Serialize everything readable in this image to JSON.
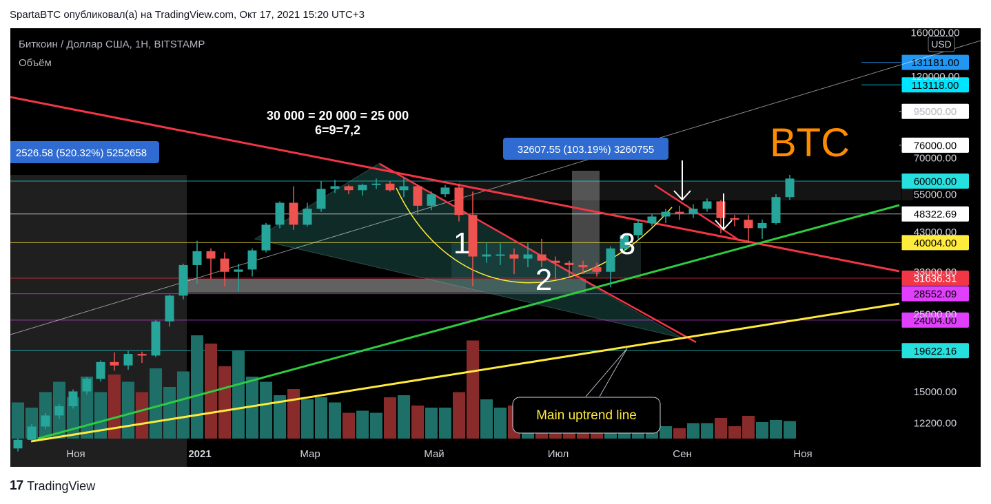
{
  "header": {
    "publisher_line": "SpartaBTC опубликовал(а) на TradingView.com, Окт 17, 2021 15:20 UTC+3"
  },
  "legend": {
    "symbol_line": "Биткоин / Доллар США, 1H, BITSTAMP",
    "volume_label": "Объём"
  },
  "currency_badge": "USD",
  "footer": {
    "logo_glyph": "17",
    "brand": "TradingView"
  },
  "chart_data": {
    "type": "candlestick",
    "title": "Биткоин / Доллар США, 1H, BITSTAMP",
    "y_scale": "log",
    "y_axis_ticks": [
      {
        "value": 160000,
        "label": "160000.00"
      },
      {
        "value": 120000,
        "label": "120000.00"
      },
      {
        "value": 95000,
        "label": "95000.00"
      },
      {
        "value": 70000,
        "label": "70000.00"
      },
      {
        "value": 55000,
        "label": "55000.00"
      },
      {
        "value": 43000,
        "label": "43000.00"
      },
      {
        "value": 33000,
        "label": "33000.00"
      },
      {
        "value": 25000,
        "label": "25000.00"
      },
      {
        "value": 15000,
        "label": "15000.00"
      },
      {
        "value": 12200,
        "label": "12200.00"
      }
    ],
    "x_axis_labels": [
      {
        "label": "Ноя",
        "bold": false
      },
      {
        "label": "2021",
        "bold": true
      },
      {
        "label": "Мар",
        "bold": false
      },
      {
        "label": "Май",
        "bold": false
      },
      {
        "label": "Июл",
        "bold": false
      },
      {
        "label": "Сен",
        "bold": false
      },
      {
        "label": "Ноя",
        "bold": false
      }
    ],
    "price_levels": [
      {
        "value": 131181.0,
        "label": "131181.00",
        "color": "#2196f3",
        "text_color": "#000000"
      },
      {
        "value": 113118.0,
        "label": "113118.00",
        "color": "#00e5ff",
        "text_color": "#000000"
      },
      {
        "value": 95000.0,
        "label": "95000.00",
        "color": "#ffffff",
        "text_color": "#000000"
      },
      {
        "value": 76000.0,
        "label": "76000.00",
        "color": "#ffffff",
        "text_color": "#000000"
      },
      {
        "value": 60000.0,
        "label": "60000.00",
        "color": "#26e0e0",
        "text_color": "#000000"
      },
      {
        "value": 48322.69,
        "label": "48322.69",
        "color": "#ffffff",
        "text_color": "#000000"
      },
      {
        "value": 40004.0,
        "label": "40004.00",
        "color": "#ffeb3b",
        "text_color": "#000000"
      },
      {
        "value": 31636.31,
        "label": "31636.31",
        "color": "#f23645",
        "text_color": "#ffffff"
      },
      {
        "value": 28552.09,
        "label": "28552.09",
        "color": "#e040fb",
        "text_color": "#000000"
      },
      {
        "value": 24004.0,
        "label": "24004.00",
        "color": "#e040fb",
        "text_color": "#000000"
      },
      {
        "value": 19622.16,
        "label": "19622.16",
        "color": "#26e0e0",
        "text_color": "#000000"
      }
    ],
    "candles": [
      [
        10300,
        11000,
        10100,
        10900
      ],
      [
        10900,
        12100,
        10800,
        11900
      ],
      [
        11900,
        13000,
        11700,
        12800
      ],
      [
        12800,
        13800,
        12500,
        13600
      ],
      [
        13600,
        15200,
        13400,
        15000
      ],
      [
        15000,
        16500,
        14700,
        16300
      ],
      [
        16300,
        18400,
        16000,
        18200
      ],
      [
        18200,
        19400,
        17200,
        17800
      ],
      [
        17800,
        19600,
        17300,
        19200
      ],
      [
        19200,
        19500,
        18100,
        19000
      ],
      [
        19000,
        24000,
        18800,
        23800
      ],
      [
        23800,
        28400,
        23000,
        28200
      ],
      [
        28200,
        34800,
        27500,
        34500
      ],
      [
        34500,
        40500,
        30500,
        37800
      ],
      [
        37800,
        38500,
        31500,
        36000
      ],
      [
        36000,
        37500,
        30000,
        33000
      ],
      [
        33000,
        34800,
        29000,
        33500
      ],
      [
        33500,
        38500,
        32000,
        38000
      ],
      [
        38000,
        45500,
        37500,
        45000
      ],
      [
        45000,
        52500,
        44000,
        52000
      ],
      [
        52000,
        58000,
        43500,
        45000
      ],
      [
        45000,
        52000,
        44500,
        50000
      ],
      [
        50000,
        60000,
        49000,
        57000
      ],
      [
        57000,
        60500,
        55500,
        58000
      ],
      [
        58000,
        58500,
        55000,
        56500
      ],
      [
        56500,
        59000,
        54500,
        58500
      ],
      [
        58500,
        61000,
        57000,
        59000
      ],
      [
        59000,
        60000,
        56000,
        56500
      ],
      [
        56500,
        61500,
        54000,
        58000
      ],
      [
        58000,
        58500,
        48000,
        51000
      ],
      [
        51000,
        56000,
        49500,
        55000
      ],
      [
        55000,
        58500,
        54000,
        57500
      ],
      [
        57500,
        59000,
        46000,
        48000
      ],
      [
        48000,
        56000,
        30000,
        36500
      ],
      [
        36500,
        40000,
        35000,
        37000
      ],
      [
        37000,
        39800,
        34500,
        37000
      ],
      [
        37000,
        38500,
        32500,
        36000
      ],
      [
        36000,
        40000,
        34000,
        37000
      ],
      [
        37000,
        41000,
        34000,
        35500
      ],
      [
        35500,
        36500,
        31500,
        35000
      ],
      [
        35000,
        35500,
        32000,
        34500
      ],
      [
        34500,
        35500,
        32500,
        34000
      ],
      [
        34000,
        35000,
        32000,
        33000
      ],
      [
        33000,
        39000,
        29800,
        38500
      ],
      [
        38500,
        42500,
        37500,
        42000
      ],
      [
        42000,
        46500,
        41000,
        45500
      ],
      [
        45500,
        48500,
        44500,
        47500
      ],
      [
        47500,
        50000,
        45500,
        49000
      ],
      [
        49000,
        51000,
        46500,
        48500
      ],
      [
        48500,
        51500,
        47000,
        50000
      ],
      [
        50000,
        53500,
        49000,
        52500
      ],
      [
        52500,
        53000,
        42500,
        47000
      ],
      [
        47000,
        48000,
        44500,
        46500
      ],
      [
        46500,
        48000,
        40000,
        44000
      ],
      [
        44000,
        46500,
        41000,
        45500
      ],
      [
        45500,
        55000,
        45000,
        54000
      ],
      [
        54000,
        62500,
        53000,
        61000
      ]
    ],
    "volumes": [
      0.35,
      0.3,
      0.45,
      0.55,
      0.4,
      0.6,
      0.45,
      0.62,
      0.55,
      0.45,
      0.68,
      0.5,
      0.65,
      1.0,
      0.92,
      0.7,
      0.85,
      0.6,
      0.55,
      0.42,
      0.48,
      0.38,
      0.4,
      0.35,
      0.25,
      0.27,
      0.25,
      0.4,
      0.42,
      0.32,
      0.3,
      0.3,
      0.45,
      0.95,
      0.38,
      0.3,
      0.32,
      0.4,
      0.35,
      0.28,
      0.22,
      0.18,
      0.16,
      0.22,
      0.15,
      0.12,
      0.1,
      0.12,
      0.1,
      0.15,
      0.15,
      0.2,
      0.12,
      0.22,
      0.16,
      0.18,
      0.17
    ],
    "annotations": {
      "equation_line1": "30 000 = 20 000 = 25 000",
      "equation_line2": "6=9=7,2",
      "measure_left": "2526.58 (520.32%) 5252658",
      "measure_right": "32607.55 (103.19%) 3260755",
      "wave_labels": [
        "1",
        "2",
        "3"
      ],
      "ticker_label": "BTC",
      "callout": "Main uptrend line"
    },
    "colors": {
      "up": "#26a69a",
      "down": "#ef5350",
      "up_volume": "#1e6f68",
      "down_volume": "#8a2b2b",
      "measure_box": "#2f6bd0",
      "ticker_label": "#ff8c00"
    },
    "legend": "top-left",
    "grid": false
  }
}
